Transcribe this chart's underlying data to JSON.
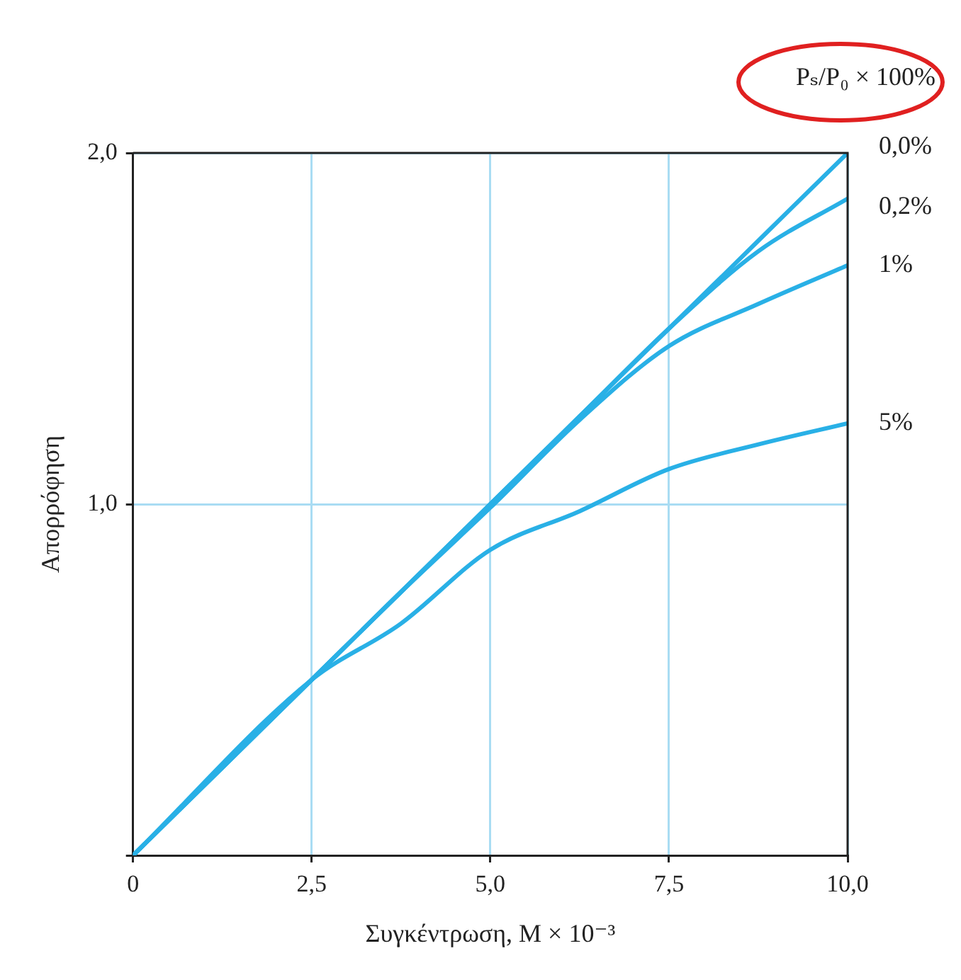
{
  "chart_data": {
    "type": "line",
    "xlabel": "Συγκέντρωση, M × 10⁻³",
    "ylabel": "Απορρόφηση",
    "legend_title": "Pₛ/P₀ × 100%",
    "x": [
      0,
      2.5,
      3.75,
      5,
      6.25,
      7.5,
      8.75,
      10
    ],
    "series": [
      {
        "name": "0,0%",
        "color": "#29b0e6",
        "values": [
          0,
          0.5,
          0.75,
          1.0,
          1.25,
          1.5,
          1.75,
          2.0
        ]
      },
      {
        "name": "0,2%",
        "color": "#29b0e6",
        "values": [
          0,
          0.5,
          0.75,
          1.0,
          1.25,
          1.5,
          1.72,
          1.87
        ]
      },
      {
        "name": "1%",
        "color": "#29b0e6",
        "values": [
          0,
          0.5,
          0.75,
          0.99,
          1.24,
          1.45,
          1.57,
          1.68
        ]
      },
      {
        "name": "5%",
        "color": "#29b0e6",
        "values": [
          0,
          0.5,
          0.66,
          0.87,
          0.98,
          1.1,
          1.17,
          1.23
        ]
      }
    ],
    "xlim": [
      0,
      10
    ],
    "xticks": [
      0,
      {
        "value": 2.5,
        "label": "2,5"
      },
      {
        "value": 5,
        "label": "5,0"
      },
      {
        "value": 7.5,
        "label": "7,5"
      },
      {
        "value": 10,
        "label": "10,0"
      }
    ],
    "ylim": [
      0,
      2
    ],
    "yticks": [
      {
        "value": 0,
        "label": null
      },
      {
        "value": 1,
        "label": "1,0"
      },
      {
        "value": 2,
        "label": "2,0"
      }
    ],
    "grid": true,
    "legend": false,
    "marker": "none",
    "line_style": "solid"
  }
}
